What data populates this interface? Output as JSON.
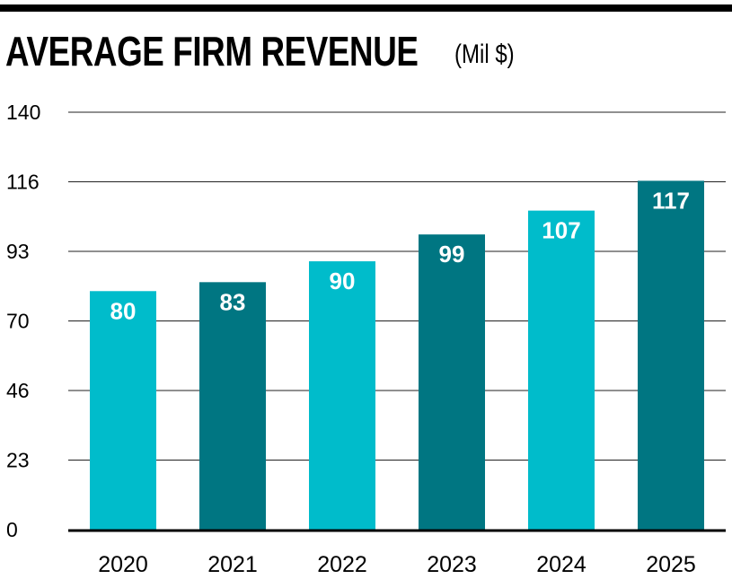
{
  "chart_data": {
    "type": "bar",
    "title": "AVERAGE FIRM REVENUE",
    "unit": "(Mil $)",
    "categories": [
      "2020",
      "2021",
      "2022",
      "2023",
      "2024",
      "2025"
    ],
    "values": [
      80,
      83,
      90,
      99,
      107,
      117
    ],
    "data_labels": [
      "80",
      "83",
      "90",
      "99",
      "107",
      "117"
    ],
    "yticks": [
      "0",
      "23",
      "46",
      "70",
      "93",
      "116",
      "140"
    ],
    "ylim": [
      0,
      140
    ],
    "grid": true,
    "colors": [
      "#00bccb",
      "#007682",
      "#00bccb",
      "#007682",
      "#00bccb",
      "#007682"
    ],
    "label_color": "#ffffff"
  }
}
